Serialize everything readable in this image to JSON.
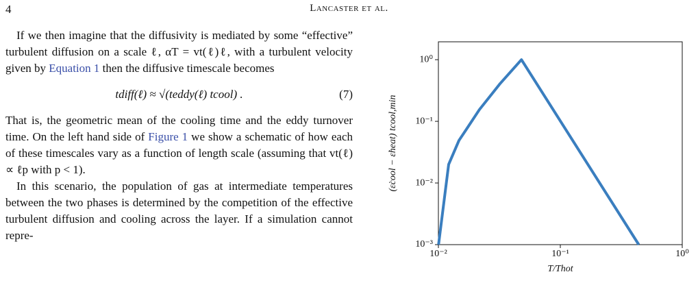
{
  "header": {
    "page": "4",
    "running_head": "Lancaster et al."
  },
  "body": {
    "p1": [
      "If we then imagine that the diffusivity is mediated by some “effective” turbulent diffusion on a scale ℓ, αT = vt(ℓ)ℓ, with a turbulent velocity given by ",
      "Equation 1",
      " then the diffusive timescale becomes"
    ],
    "equation": {
      "text": "tdiff(ℓ) ≈ √(teddy(ℓ) tcool) .",
      "number": "(7)"
    },
    "p2": [
      "That is, the geometric mean of the cooling time and the eddy turnover time. On the left hand side of ",
      "Figure 1",
      " we show a schematic of how each of these timescales vary as a function of length scale (assuming that vt(ℓ) ∝ ℓp with p < 1)."
    ],
    "p3": "In this scenario, the population of gas at intermediate temperatures between the two phases is determined by the competition of the effective turbulent diffusion and cooling across the layer. If a simulation cannot repre-"
  },
  "chart_data": {
    "type": "line",
    "xlabel": "T/Thot",
    "ylabel": "(ε̇cool − ε̇heat) tcool,min",
    "x": [
      0.01003,
      0.01066,
      0.01214,
      0.01475,
      0.0168,
      0.0217,
      0.0321,
      0.048,
      0.44
    ],
    "series": [
      {
        "color": "#3a7ebf",
        "values": [
          0.001,
          0.0026,
          0.02,
          0.049,
          0.072,
          0.155,
          0.41,
          1,
          0.001
        ]
      }
    ],
    "xlog": true,
    "ylog": true,
    "xlim": [
      0.01,
      1
    ],
    "ylim": [
      0.001,
      1.95
    ],
    "xticks": [
      {
        "value": 0.01,
        "label": "10⁻²"
      },
      {
        "value": 0.1,
        "label": "10⁻¹"
      },
      {
        "value": 1,
        "label": "10⁰"
      }
    ],
    "yticks": [
      {
        "value": 0.001,
        "label": "10⁻³"
      },
      {
        "value": 0.01,
        "label": "10⁻²"
      },
      {
        "value": 0.1,
        "label": "10⁻¹"
      },
      {
        "value": 1,
        "label": "10⁰"
      }
    ]
  }
}
